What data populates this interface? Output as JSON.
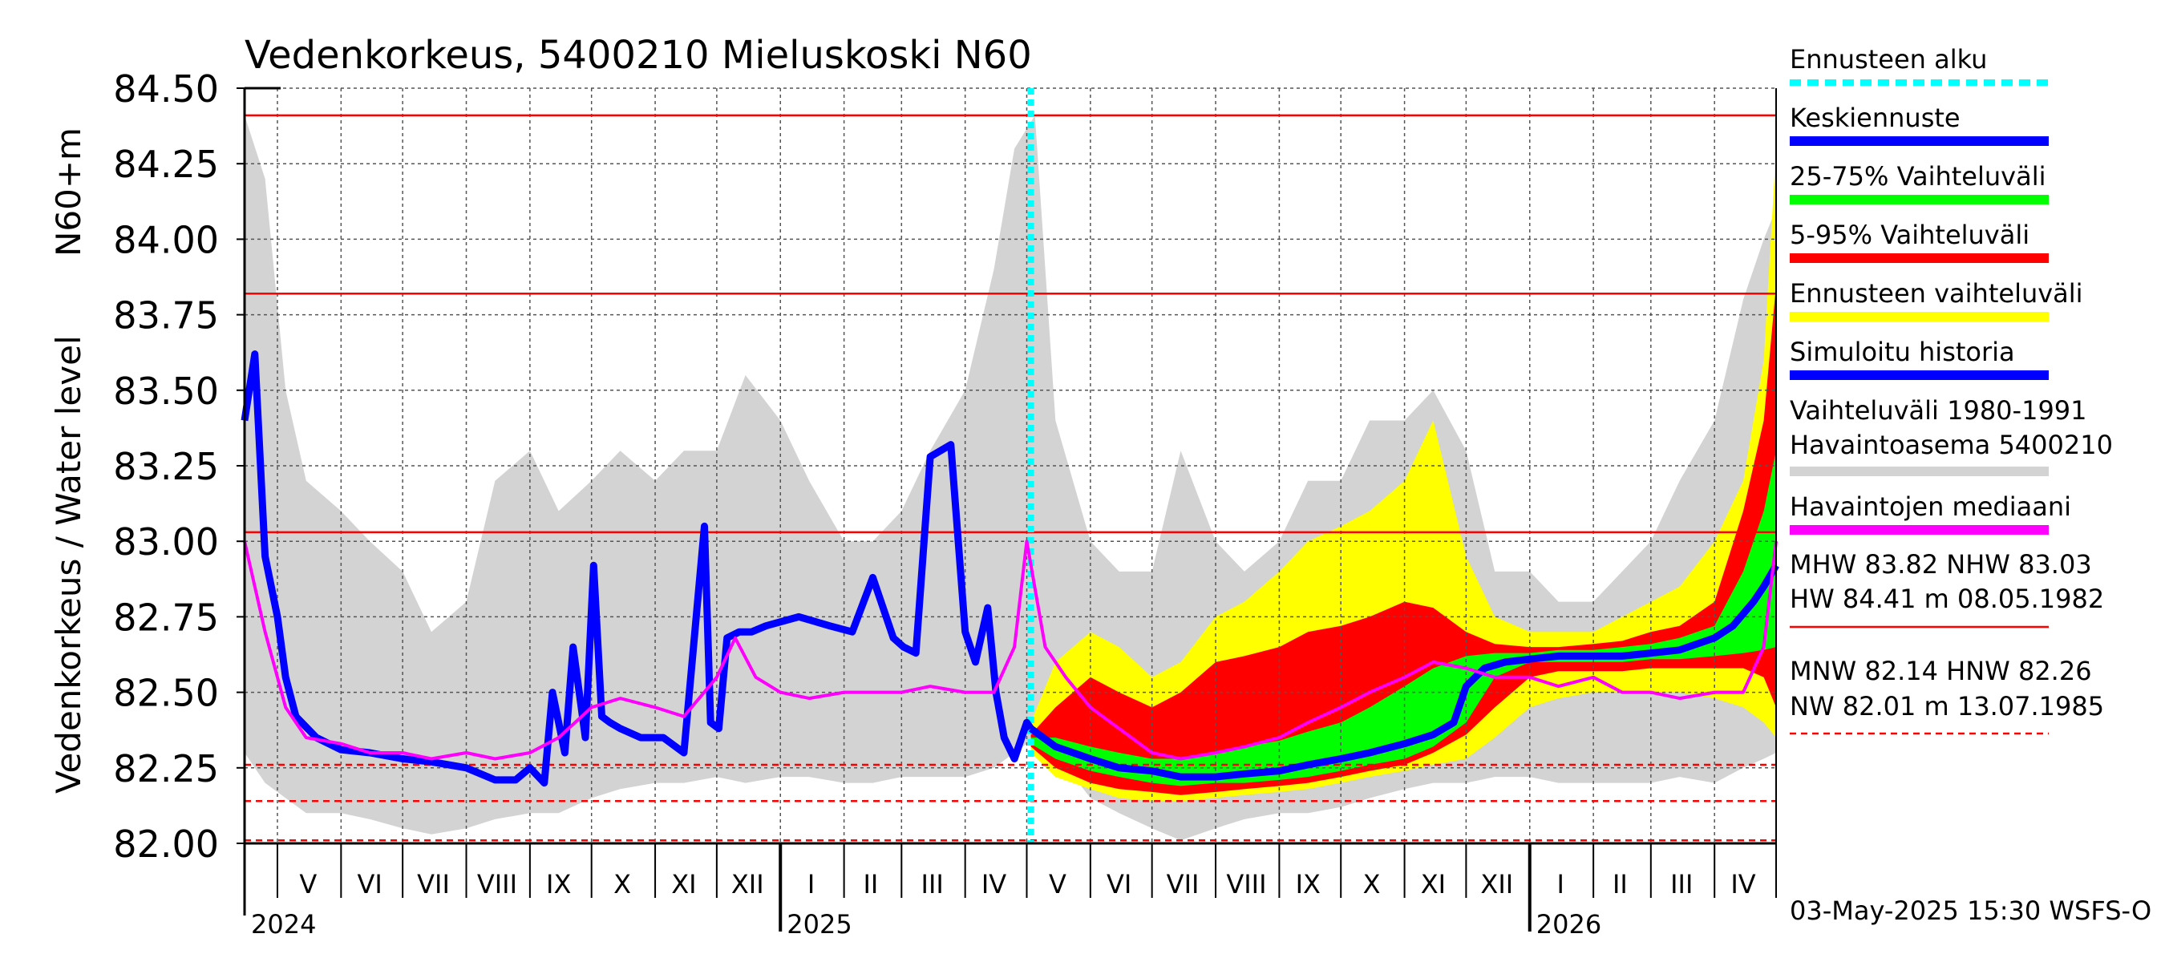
{
  "chart_data": {
    "type": "line",
    "title": "Vedenkorkeus, 5400210 Mieluskoski N60",
    "ylabel_top": "N60+m",
    "ylabel": "Vedenkorkeus / Water level",
    "ylim": [
      82.0,
      84.5
    ],
    "y_ticks": [
      "84.50",
      "84.25",
      "84.00",
      "83.75",
      "83.50",
      "83.25",
      "83.00",
      "82.75",
      "82.50",
      "82.25",
      "82.00"
    ],
    "y_tick_values": [
      84.5,
      84.25,
      84.0,
      83.75,
      83.5,
      83.25,
      83.0,
      82.75,
      82.5,
      82.25,
      82.0
    ],
    "x_start": "2024-04-15",
    "x_end": "2026-05-01",
    "forecast_start": "2025-05-03",
    "month_labels": [
      {
        "label": "V",
        "date": "2024-05-16"
      },
      {
        "label": "VI",
        "date": "2024-06-15"
      },
      {
        "label": "VII",
        "date": "2024-07-16"
      },
      {
        "label": "VIII",
        "date": "2024-08-16"
      },
      {
        "label": "IX",
        "date": "2024-09-15"
      },
      {
        "label": "X",
        "date": "2024-10-16"
      },
      {
        "label": "XI",
        "date": "2024-11-15"
      },
      {
        "label": "XII",
        "date": "2024-12-16"
      },
      {
        "label": "I",
        "date": "2025-01-16"
      },
      {
        "label": "II",
        "date": "2025-02-14"
      },
      {
        "label": "III",
        "date": "2025-03-16"
      },
      {
        "label": "IV",
        "date": "2025-04-15"
      },
      {
        "label": "V",
        "date": "2025-05-16"
      },
      {
        "label": "VI",
        "date": "2025-06-15"
      },
      {
        "label": "VII",
        "date": "2025-07-16"
      },
      {
        "label": "VIII",
        "date": "2025-08-16"
      },
      {
        "label": "IX",
        "date": "2025-09-15"
      },
      {
        "label": "X",
        "date": "2025-10-16"
      },
      {
        "label": "XI",
        "date": "2025-11-15"
      },
      {
        "label": "XII",
        "date": "2025-12-16"
      },
      {
        "label": "I",
        "date": "2026-01-16"
      },
      {
        "label": "II",
        "date": "2026-02-14"
      },
      {
        "label": "III",
        "date": "2026-03-16"
      },
      {
        "label": "IV",
        "date": "2026-04-15"
      }
    ],
    "year_labels": [
      {
        "label": "2024",
        "date": "2024-04-15"
      },
      {
        "label": "2025",
        "date": "2025-01-01"
      },
      {
        "label": "2026",
        "date": "2026-01-01"
      }
    ],
    "reference_lines": [
      {
        "name": "HW",
        "value": 84.41,
        "style": "solid"
      },
      {
        "name": "MHW",
        "value": 83.82,
        "style": "solid"
      },
      {
        "name": "NHW",
        "value": 83.03,
        "style": "solid"
      },
      {
        "name": "HNW",
        "value": 82.26,
        "style": "dashed"
      },
      {
        "name": "MNW",
        "value": 82.14,
        "style": "dashed"
      },
      {
        "name": "NW",
        "value": 82.01,
        "style": "dashed"
      }
    ],
    "series": [
      {
        "name": "Simuloitu historia",
        "color": "#0000ff",
        "x": [
          "2024-04-15",
          "2024-04-20",
          "2024-04-25",
          "2024-05-01",
          "2024-05-05",
          "2024-05-10",
          "2024-05-20",
          "2024-06-01",
          "2024-06-15",
          "2024-07-01",
          "2024-07-15",
          "2024-08-01",
          "2024-08-15",
          "2024-08-25",
          "2024-09-01",
          "2024-09-08",
          "2024-09-12",
          "2024-09-18",
          "2024-09-22",
          "2024-09-28",
          "2024-10-02",
          "2024-10-06",
          "2024-10-10",
          "2024-10-15",
          "2024-10-25",
          "2024-11-05",
          "2024-11-15",
          "2024-11-25",
          "2024-11-28",
          "2024-12-02",
          "2024-12-06",
          "2024-12-12",
          "2024-12-18",
          "2024-12-25",
          "2025-01-10",
          "2025-01-25",
          "2025-02-05",
          "2025-02-15",
          "2025-02-25",
          "2025-03-02",
          "2025-03-08",
          "2025-03-15",
          "2025-03-25",
          "2025-04-01",
          "2025-04-06",
          "2025-04-12",
          "2025-04-16",
          "2025-04-20",
          "2025-04-25",
          "2025-05-01",
          "2025-05-03"
        ],
        "y": [
          83.4,
          83.62,
          82.95,
          82.75,
          82.55,
          82.42,
          82.35,
          82.31,
          82.3,
          82.28,
          82.27,
          82.25,
          82.21,
          82.21,
          82.25,
          82.2,
          82.5,
          82.3,
          82.65,
          82.35,
          82.92,
          82.42,
          82.4,
          82.38,
          82.35,
          82.35,
          82.3,
          83.05,
          82.4,
          82.38,
          82.68,
          82.7,
          82.7,
          82.72,
          82.75,
          82.72,
          82.7,
          82.88,
          82.68,
          82.65,
          82.63,
          83.28,
          83.32,
          82.7,
          82.6,
          82.78,
          82.5,
          82.35,
          82.28,
          82.4,
          82.38
        ]
      },
      {
        "name": "Keskiennuste",
        "color": "#0000ff",
        "x": [
          "2025-05-03",
          "2025-05-15",
          "2025-06-01",
          "2025-06-15",
          "2025-07-01",
          "2025-07-15",
          "2025-08-01",
          "2025-08-15",
          "2025-09-01",
          "2025-09-15",
          "2025-10-01",
          "2025-10-15",
          "2025-11-01",
          "2025-11-15",
          "2025-11-25",
          "2025-12-01",
          "2025-12-10",
          "2025-12-20",
          "2026-01-01",
          "2026-01-15",
          "2026-02-01",
          "2026-02-15",
          "2026-03-01",
          "2026-03-15",
          "2026-04-01",
          "2026-04-10",
          "2026-04-20",
          "2026-04-25",
          "2026-05-01"
        ],
        "y": [
          82.38,
          82.32,
          82.28,
          82.25,
          82.24,
          82.22,
          82.22,
          82.23,
          82.24,
          82.26,
          82.28,
          82.3,
          82.33,
          82.36,
          82.4,
          82.52,
          82.58,
          82.6,
          82.61,
          82.62,
          82.62,
          82.62,
          82.63,
          82.64,
          82.68,
          82.72,
          82.8,
          82.85,
          82.92
        ]
      },
      {
        "name": "Havaintojen mediaani",
        "color": "#ff00ff",
        "x": [
          "2024-04-15",
          "2024-04-25",
          "2024-05-05",
          "2024-05-15",
          "2024-06-01",
          "2024-06-15",
          "2024-07-01",
          "2024-07-15",
          "2024-08-01",
          "2024-08-15",
          "2024-09-01",
          "2024-09-15",
          "2024-10-01",
          "2024-10-15",
          "2024-11-01",
          "2024-11-15",
          "2024-12-01",
          "2024-12-10",
          "2024-12-20",
          "2025-01-01",
          "2025-01-15",
          "2025-02-01",
          "2025-02-15",
          "2025-03-01",
          "2025-03-15",
          "2025-04-01",
          "2025-04-15",
          "2025-04-25",
          "2025-05-01",
          "2025-05-10",
          "2025-05-20",
          "2025-06-01",
          "2025-06-15",
          "2025-07-01",
          "2025-07-15",
          "2025-08-01",
          "2025-08-15",
          "2025-09-01",
          "2025-09-15",
          "2025-10-01",
          "2025-10-15",
          "2025-11-01",
          "2025-11-15",
          "2025-12-01",
          "2025-12-15",
          "2026-01-01",
          "2026-01-15",
          "2026-02-01",
          "2026-02-15",
          "2026-03-01",
          "2026-03-15",
          "2026-04-01",
          "2026-04-15",
          "2026-04-25",
          "2026-05-01"
        ],
        "y": [
          83.0,
          82.7,
          82.45,
          82.35,
          82.33,
          82.3,
          82.3,
          82.28,
          82.3,
          82.28,
          82.3,
          82.35,
          82.45,
          82.48,
          82.45,
          82.42,
          82.55,
          82.68,
          82.55,
          82.5,
          82.48,
          82.5,
          82.5,
          82.5,
          82.52,
          82.5,
          82.5,
          82.65,
          83.0,
          82.65,
          82.55,
          82.45,
          82.38,
          82.3,
          82.28,
          82.3,
          82.32,
          82.35,
          82.4,
          82.45,
          82.5,
          82.55,
          82.6,
          82.58,
          82.55,
          82.55,
          82.52,
          82.55,
          82.5,
          82.5,
          82.48,
          82.5,
          82.5,
          82.65,
          83.0
        ]
      }
    ],
    "bands": [
      {
        "name": "Vaihteluväli 1980-1991 Havaintoasema 5400210",
        "color": "#d3d3d3",
        "x": [
          "2024-04-15",
          "2024-04-25",
          "2024-05-05",
          "2024-05-15",
          "2024-06-01",
          "2024-06-15",
          "2024-07-01",
          "2024-07-15",
          "2024-08-01",
          "2024-08-15",
          "2024-09-01",
          "2024-09-15",
          "2024-10-01",
          "2024-10-15",
          "2024-11-01",
          "2024-11-15",
          "2024-12-01",
          "2024-12-15",
          "2025-01-01",
          "2025-01-15",
          "2025-02-01",
          "2025-02-15",
          "2025-03-01",
          "2025-03-15",
          "2025-04-01",
          "2025-04-15",
          "2025-04-25",
          "2025-05-05",
          "2025-05-15",
          "2025-06-01",
          "2025-06-15",
          "2025-07-01",
          "2025-07-15",
          "2025-08-01",
          "2025-08-15",
          "2025-09-01",
          "2025-09-15",
          "2025-10-01",
          "2025-10-15",
          "2025-11-01",
          "2025-11-15",
          "2025-12-01",
          "2025-12-15",
          "2026-01-01",
          "2026-01-15",
          "2026-02-01",
          "2026-02-15",
          "2026-03-01",
          "2026-03-15",
          "2026-04-01",
          "2026-04-15",
          "2026-04-25",
          "2026-05-01"
        ],
        "upper": [
          84.41,
          84.2,
          83.5,
          83.2,
          83.1,
          83.0,
          82.9,
          82.7,
          82.8,
          83.2,
          83.3,
          83.1,
          83.2,
          83.3,
          83.2,
          83.3,
          83.3,
          83.55,
          83.4,
          83.2,
          83.0,
          83.0,
          83.1,
          83.3,
          83.5,
          83.9,
          84.3,
          84.41,
          83.4,
          83.0,
          82.9,
          82.9,
          83.3,
          83.0,
          82.9,
          83.0,
          83.2,
          83.2,
          83.4,
          83.4,
          83.5,
          83.3,
          82.9,
          82.9,
          82.8,
          82.8,
          82.9,
          83.0,
          83.2,
          83.4,
          83.8,
          84.0,
          84.1
        ],
        "lower": [
          82.3,
          82.2,
          82.15,
          82.1,
          82.1,
          82.08,
          82.05,
          82.03,
          82.05,
          82.08,
          82.1,
          82.1,
          82.15,
          82.18,
          82.2,
          82.2,
          82.22,
          82.2,
          82.22,
          82.22,
          82.2,
          82.2,
          82.22,
          82.22,
          82.22,
          82.25,
          82.3,
          82.35,
          82.3,
          82.15,
          82.1,
          82.05,
          82.01,
          82.05,
          82.08,
          82.1,
          82.1,
          82.12,
          82.15,
          82.18,
          82.2,
          82.2,
          82.22,
          82.22,
          82.2,
          82.2,
          82.2,
          82.2,
          82.22,
          82.2,
          82.25,
          82.28,
          82.3
        ]
      },
      {
        "name": "Ennusteen vaihteluväli",
        "color": "#ffff00",
        "x": [
          "2025-05-03",
          "2025-05-15",
          "2025-06-01",
          "2025-06-15",
          "2025-07-01",
          "2025-07-15",
          "2025-08-01",
          "2025-08-15",
          "2025-09-01",
          "2025-09-15",
          "2025-10-01",
          "2025-10-15",
          "2025-11-01",
          "2025-11-15",
          "2025-12-01",
          "2025-12-15",
          "2026-01-01",
          "2026-01-15",
          "2026-02-01",
          "2026-02-15",
          "2026-03-01",
          "2026-03-15",
          "2026-04-01",
          "2026-04-15",
          "2026-04-25",
          "2026-05-01"
        ],
        "upper": [
          82.4,
          82.6,
          82.7,
          82.65,
          82.55,
          82.6,
          82.75,
          82.8,
          82.9,
          83.0,
          83.05,
          83.1,
          83.2,
          83.4,
          82.95,
          82.75,
          82.7,
          82.7,
          82.7,
          82.75,
          82.8,
          82.85,
          83.0,
          83.2,
          83.6,
          84.3
        ],
        "lower": [
          82.3,
          82.22,
          82.18,
          82.15,
          82.14,
          82.14,
          82.15,
          82.16,
          82.17,
          82.18,
          82.2,
          82.22,
          82.24,
          82.26,
          82.28,
          82.35,
          82.45,
          82.48,
          82.5,
          82.5,
          82.5,
          82.5,
          82.48,
          82.45,
          82.4,
          82.35
        ]
      },
      {
        "name": "5-95% Vaihteluväli",
        "color": "#ff0000",
        "x": [
          "2025-05-03",
          "2025-05-15",
          "2025-06-01",
          "2025-06-15",
          "2025-07-01",
          "2025-07-15",
          "2025-08-01",
          "2025-08-15",
          "2025-09-01",
          "2025-09-15",
          "2025-10-01",
          "2025-10-15",
          "2025-11-01",
          "2025-11-15",
          "2025-12-01",
          "2025-12-15",
          "2026-01-01",
          "2026-01-15",
          "2026-02-01",
          "2026-02-15",
          "2026-03-01",
          "2026-03-15",
          "2026-04-01",
          "2026-04-15",
          "2026-04-25",
          "2026-05-01"
        ],
        "upper": [
          82.36,
          82.45,
          82.55,
          82.5,
          82.45,
          82.5,
          82.6,
          82.62,
          82.65,
          82.7,
          82.72,
          82.75,
          82.8,
          82.78,
          82.7,
          82.66,
          82.65,
          82.65,
          82.66,
          82.67,
          82.7,
          82.72,
          82.8,
          83.1,
          83.4,
          83.85
        ],
        "lower": [
          82.32,
          82.25,
          82.2,
          82.18,
          82.17,
          82.16,
          82.17,
          82.18,
          82.19,
          82.2,
          82.22,
          82.24,
          82.26,
          82.3,
          82.36,
          82.45,
          82.55,
          82.57,
          82.57,
          82.57,
          82.58,
          82.58,
          82.58,
          82.58,
          82.55,
          82.45
        ]
      },
      {
        "name": "25-75% Vaihteluväli",
        "color": "#00ff00",
        "x": [
          "2025-05-03",
          "2025-05-15",
          "2025-06-01",
          "2025-06-15",
          "2025-07-01",
          "2025-07-15",
          "2025-08-01",
          "2025-08-15",
          "2025-09-01",
          "2025-09-15",
          "2025-10-01",
          "2025-10-15",
          "2025-11-01",
          "2025-11-15",
          "2025-12-01",
          "2025-12-15",
          "2026-01-01",
          "2026-01-15",
          "2026-02-01",
          "2026-02-15",
          "2026-03-01",
          "2026-03-15",
          "2026-04-01",
          "2026-04-15",
          "2026-04-25",
          "2026-05-01"
        ],
        "upper": [
          82.35,
          82.35,
          82.32,
          82.3,
          82.28,
          82.28,
          82.3,
          82.32,
          82.34,
          82.37,
          82.4,
          82.45,
          82.52,
          82.58,
          82.62,
          82.63,
          82.63,
          82.64,
          82.64,
          82.65,
          82.66,
          82.68,
          82.72,
          82.9,
          83.1,
          83.3
        ],
        "lower": [
          82.33,
          82.28,
          82.24,
          82.22,
          82.2,
          82.19,
          82.2,
          82.2,
          82.21,
          82.22,
          82.24,
          82.26,
          82.28,
          82.32,
          82.4,
          82.55,
          82.6,
          82.6,
          82.6,
          82.6,
          82.61,
          82.61,
          82.62,
          82.63,
          82.64,
          82.65
        ]
      }
    ],
    "legend": [
      {
        "label": "Ennusteen alku",
        "color": "#00ffff",
        "style": "dotted"
      },
      {
        "label": "Keskiennuste",
        "color": "#0000ff",
        "style": "solid"
      },
      {
        "label": "25-75% Vaihteluväli",
        "color": "#00ff00",
        "style": "solid"
      },
      {
        "label": "5-95% Vaihteluväli",
        "color": "#ff0000",
        "style": "solid"
      },
      {
        "label": "Ennusteen vaihteluväli",
        "color": "#ffff00",
        "style": "solid"
      },
      {
        "label": "Simuloitu historia",
        "color": "#0000ff",
        "style": "solid"
      },
      {
        "label": "Vaihteluväli 1980-1991",
        "label2": " Havaintoasema 5400210",
        "color": "#d3d3d3",
        "style": "solid"
      },
      {
        "label": "Havaintojen mediaani",
        "color": "#ff00ff",
        "style": "solid"
      }
    ],
    "stats": [
      {
        "line": "MHW  83.82 NHW  83.03",
        "color": "#ff0000",
        "style": "solid"
      },
      {
        "line": "HW  84.41 m 08.05.1982",
        "color": "#ff0000",
        "style": "solid"
      },
      {
        "line": "MNW  82.14 HNW  82.26",
        "color": "#ff0000",
        "style": "dashed"
      },
      {
        "line": "NW  82.01 m 13.07.1985",
        "color": "#ff0000",
        "style": "dashed"
      }
    ],
    "footer": "03-May-2025 15:30 WSFS-O",
    "grid": true
  }
}
